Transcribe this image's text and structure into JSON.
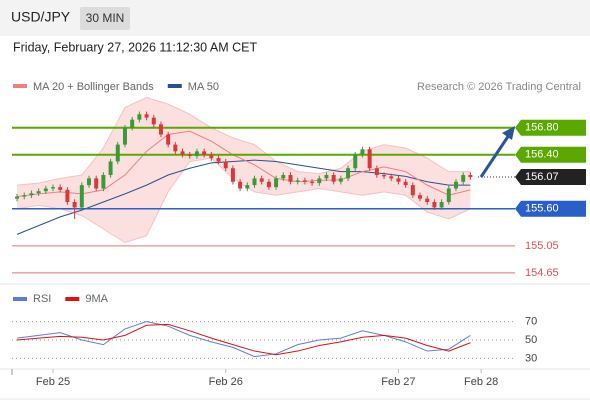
{
  "header": {
    "symbol": "USD/JPY",
    "interval": "30 MIN",
    "datetime": "Friday, February 27, 2026 11:12:30 AM CET"
  },
  "chart_data": {
    "type": "candlestick",
    "legend": [
      {
        "name": "MA 20 + Bollinger Bands",
        "color": "#f08080"
      },
      {
        "name": "MA 50",
        "color": "#2a4f8f"
      }
    ],
    "credit": "Research © 2026 Trading Central",
    "up_color": "#3a9a3a",
    "down_color": "#d83a3a",
    "xlim": [
      -5.7,
      64.2
    ],
    "ylim": [
      154.5,
      158.1
    ],
    "xticks": [
      {
        "value": 0,
        "label": "Feb 25"
      },
      {
        "value": 24,
        "label": "Feb 26"
      },
      {
        "value": 48,
        "label": "Feb 27"
      },
      {
        "value": 59.5,
        "label": "Feb 28"
      }
    ],
    "x": [
      -5,
      -4,
      -3,
      -2,
      -1,
      0,
      1,
      2,
      3,
      4,
      5,
      6,
      7,
      8,
      9,
      10,
      11,
      12,
      13,
      14,
      15,
      16,
      17,
      18,
      19,
      20,
      21,
      22,
      23,
      24,
      25,
      26,
      27,
      28,
      29,
      30,
      31,
      32,
      33,
      34,
      35,
      36,
      37,
      38,
      39,
      40,
      41,
      42,
      43,
      44,
      45,
      46,
      47,
      48,
      49,
      50,
      51,
      52,
      53,
      54,
      55,
      56,
      57,
      58
    ],
    "open": [
      155.75,
      155.78,
      155.8,
      155.83,
      155.86,
      155.9,
      155.92,
      155.88,
      155.7,
      155.62,
      155.95,
      156.05,
      155.9,
      156.1,
      156.3,
      156.55,
      156.8,
      156.92,
      157.0,
      156.95,
      156.85,
      156.7,
      156.55,
      156.45,
      156.4,
      156.38,
      156.45,
      156.4,
      156.35,
      156.3,
      156.2,
      156.0,
      155.9,
      155.95,
      156.05,
      156.0,
      155.92,
      156.05,
      156.1,
      156.0,
      156.02,
      156.0,
      155.98,
      156.05,
      156.1,
      156.0,
      156.05,
      156.2,
      156.4,
      156.48,
      156.2,
      156.1,
      156.08,
      156.05,
      156.0,
      155.95,
      155.8,
      155.75,
      155.7,
      155.62,
      155.7,
      155.9,
      156.0,
      156.1
    ],
    "high": [
      155.82,
      155.84,
      155.87,
      155.9,
      155.94,
      155.96,
      155.96,
      155.92,
      155.74,
      155.99,
      156.09,
      156.09,
      156.14,
      156.34,
      156.59,
      156.84,
      156.96,
      157.04,
      157.04,
      156.99,
      156.89,
      156.74,
      156.59,
      156.49,
      156.44,
      156.49,
      156.49,
      156.44,
      156.39,
      156.34,
      156.24,
      156.04,
      155.99,
      156.09,
      156.09,
      156.04,
      156.09,
      156.14,
      156.14,
      156.06,
      156.06,
      156.04,
      156.09,
      156.14,
      156.14,
      156.09,
      156.24,
      156.44,
      156.52,
      156.52,
      156.24,
      156.14,
      156.12,
      156.09,
      156.04,
      155.99,
      155.84,
      155.79,
      155.74,
      155.74,
      155.94,
      156.04,
      156.14,
      156.14
    ],
    "low": [
      155.71,
      155.74,
      155.76,
      155.79,
      155.82,
      155.86,
      155.84,
      155.66,
      155.45,
      155.58,
      155.91,
      155.86,
      155.86,
      156.06,
      156.26,
      156.51,
      156.76,
      156.88,
      156.91,
      156.81,
      156.66,
      156.51,
      156.41,
      156.36,
      156.34,
      156.34,
      156.36,
      156.31,
      156.26,
      156.16,
      155.96,
      155.86,
      155.86,
      155.91,
      155.96,
      155.88,
      155.88,
      156.01,
      155.96,
      155.96,
      155.96,
      155.94,
      155.94,
      156.01,
      155.96,
      155.96,
      156.01,
      156.16,
      156.36,
      156.16,
      156.06,
      156.04,
      156.01,
      155.96,
      155.91,
      155.76,
      155.71,
      155.66,
      155.58,
      155.58,
      155.66,
      155.86,
      155.96,
      156.03
    ],
    "close": [
      155.78,
      155.8,
      155.83,
      155.86,
      155.9,
      155.92,
      155.88,
      155.7,
      155.62,
      155.95,
      156.05,
      155.9,
      156.1,
      156.3,
      156.55,
      156.8,
      156.92,
      157.0,
      156.95,
      156.85,
      156.7,
      156.55,
      156.45,
      156.4,
      156.38,
      156.45,
      156.4,
      156.35,
      156.3,
      156.2,
      156.0,
      155.9,
      155.95,
      156.05,
      156.0,
      155.92,
      156.05,
      156.1,
      156.0,
      156.02,
      156.0,
      155.98,
      156.05,
      156.1,
      156.0,
      156.05,
      156.2,
      156.4,
      156.48,
      156.2,
      156.1,
      156.08,
      156.05,
      156.0,
      155.95,
      155.8,
      155.75,
      155.7,
      155.62,
      155.7,
      155.9,
      156.0,
      156.1,
      156.07
    ],
    "line_x": [
      -5,
      -2,
      1,
      4,
      7,
      10,
      13,
      16,
      19,
      22,
      25,
      28,
      31,
      34,
      37,
      40,
      43,
      46,
      49,
      52,
      55,
      58
    ],
    "ma20": [
      155.78,
      155.82,
      155.85,
      155.82,
      155.88,
      156.1,
      156.45,
      156.7,
      156.75,
      156.6,
      156.4,
      156.25,
      156.05,
      156.0,
      156.02,
      156.03,
      156.15,
      156.22,
      156.15,
      155.95,
      155.8,
      155.88
    ],
    "bb_upper": [
      155.95,
      155.98,
      156.05,
      156.1,
      156.5,
      157.1,
      157.25,
      157.15,
      157.0,
      156.8,
      156.65,
      156.55,
      156.3,
      156.15,
      156.12,
      156.2,
      156.45,
      156.55,
      156.5,
      156.35,
      156.15,
      156.15
    ],
    "bb_lower": [
      155.6,
      155.65,
      155.6,
      155.5,
      155.3,
      155.1,
      155.2,
      155.85,
      156.3,
      156.35,
      156.05,
      155.85,
      155.8,
      155.85,
      155.9,
      155.85,
      155.8,
      155.85,
      155.8,
      155.55,
      155.45,
      155.6
    ],
    "ma50": [
      155.22,
      155.35,
      155.48,
      155.58,
      155.7,
      155.82,
      155.95,
      156.1,
      156.2,
      156.28,
      156.3,
      156.32,
      156.3,
      156.25,
      156.2,
      156.15,
      156.15,
      156.12,
      156.08,
      156.0,
      155.95,
      155.95
    ],
    "levels": [
      {
        "value": 156.8,
        "label": "156.80",
        "color": "#5aa800",
        "style": "box"
      },
      {
        "value": 156.4,
        "label": "156.40",
        "color": "#5aa800",
        "style": "box"
      },
      {
        "value": 156.07,
        "label": "156.07",
        "color": "#222222",
        "style": "current"
      },
      {
        "value": 155.6,
        "label": "155.60",
        "color": "#2a5fc9",
        "style": "box"
      },
      {
        "value": 155.05,
        "label": "155.05",
        "color": "#e05050",
        "style": "text"
      },
      {
        "value": 154.65,
        "label": "154.65",
        "color": "#e05050",
        "style": "text"
      }
    ],
    "rsi": {
      "legend": [
        {
          "name": "RSI",
          "color": "#5b7fd6"
        },
        {
          "name": "9MA",
          "color": "#e01010"
        }
      ],
      "ylim": [
        12,
        88
      ],
      "yticks": [
        30,
        50,
        70
      ],
      "values": [
        52,
        55,
        58,
        50,
        45,
        62,
        70,
        65,
        55,
        48,
        42,
        32,
        35,
        45,
        50,
        52,
        60,
        55,
        48,
        38,
        40,
        55
      ],
      "ma": [
        50,
        52,
        54,
        53,
        50,
        55,
        66,
        67,
        60,
        52,
        45,
        38,
        34,
        38,
        44,
        48,
        53,
        55,
        52,
        44,
        38,
        47
      ]
    }
  }
}
